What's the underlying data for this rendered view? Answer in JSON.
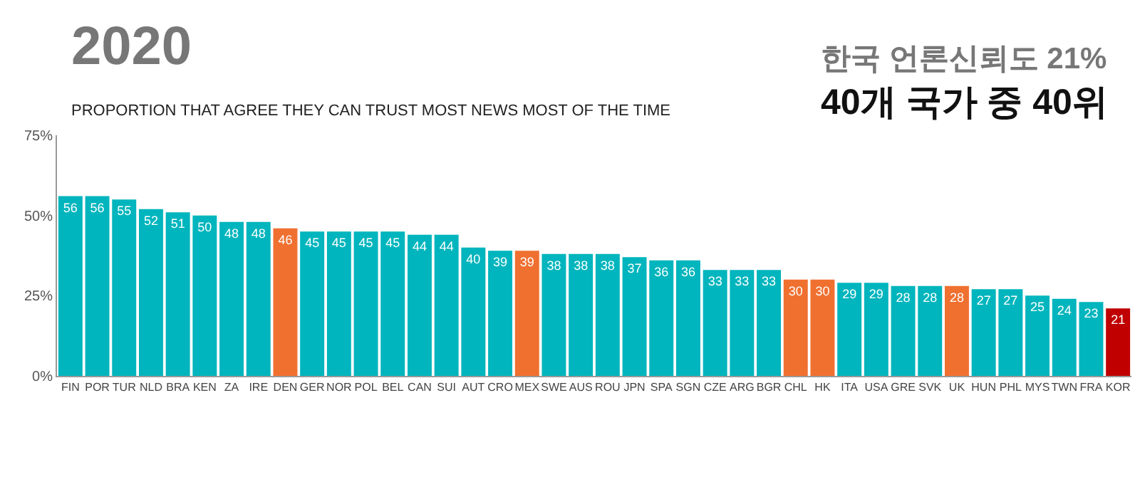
{
  "chart_data": {
    "type": "bar",
    "title": "2020",
    "subtitle": "PROPORTION THAT AGREE THEY CAN TRUST MOST NEWS MOST OF THE TIME",
    "annotations": [
      "한국 언론신뢰도 21%",
      "40개 국가 중 40위"
    ],
    "categories": [
      "FIN",
      "POR",
      "TUR",
      "NLD",
      "BRA",
      "KEN",
      "ZA",
      "IRE",
      "DEN",
      "GER",
      "NOR",
      "POL",
      "BEL",
      "CAN",
      "SUI",
      "AUT",
      "CRO",
      "MEX",
      "SWE",
      "AUS",
      "ROU",
      "JPN",
      "SPA",
      "SGN",
      "CZE",
      "ARG",
      "BGR",
      "CHL",
      "HK",
      "ITA",
      "USA",
      "GRE",
      "SVK",
      "UK",
      "HUN",
      "PHL",
      "MYS",
      "TWN",
      "FRA",
      "KOR"
    ],
    "values": [
      56,
      56,
      55,
      52,
      51,
      50,
      48,
      48,
      46,
      45,
      45,
      45,
      45,
      44,
      44,
      40,
      39,
      39,
      38,
      38,
      38,
      37,
      36,
      36,
      33,
      33,
      33,
      30,
      30,
      29,
      29,
      28,
      28,
      28,
      27,
      27,
      25,
      24,
      23,
      21
    ],
    "colors": [
      "#00b5bd",
      "#00b5bd",
      "#00b5bd",
      "#00b5bd",
      "#00b5bd",
      "#00b5bd",
      "#00b5bd",
      "#00b5bd",
      "#f07030",
      "#00b5bd",
      "#00b5bd",
      "#00b5bd",
      "#00b5bd",
      "#00b5bd",
      "#00b5bd",
      "#00b5bd",
      "#00b5bd",
      "#f07030",
      "#00b5bd",
      "#00b5bd",
      "#00b5bd",
      "#00b5bd",
      "#00b5bd",
      "#00b5bd",
      "#00b5bd",
      "#00b5bd",
      "#00b5bd",
      "#f07030",
      "#f07030",
      "#00b5bd",
      "#00b5bd",
      "#00b5bd",
      "#00b5bd",
      "#f07030",
      "#00b5bd",
      "#00b5bd",
      "#00b5bd",
      "#00b5bd",
      "#00b5bd",
      "#c00000"
    ],
    "data_labels": true,
    "ylim": [
      0,
      75
    ],
    "yticks": [
      {
        "value": 0,
        "label": "0%"
      },
      {
        "value": 25,
        "label": "25%"
      },
      {
        "value": 50,
        "label": "50%"
      },
      {
        "value": 75,
        "label": "75%"
      }
    ]
  }
}
